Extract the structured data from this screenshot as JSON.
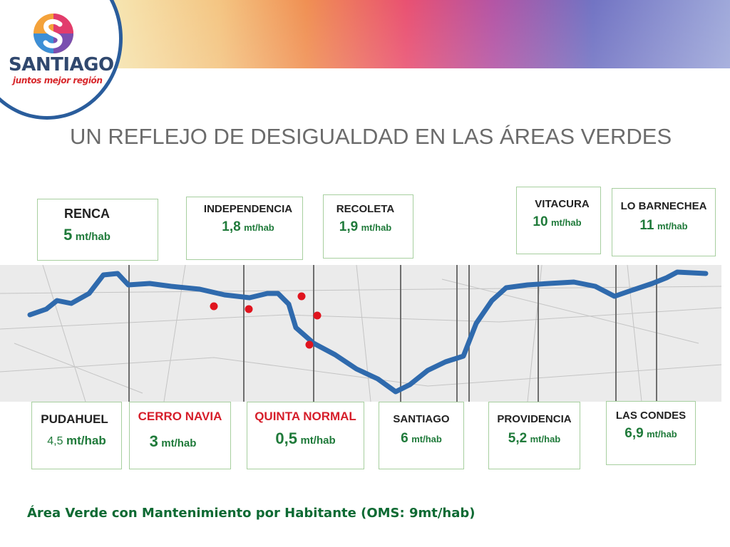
{
  "logo": {
    "name": "SANTIAGO",
    "tagline": "juntos mejor región"
  },
  "title": "UN REFLEJO DE DESIGUALDAD EN LAS ÁREAS VERDES",
  "communes_top": [
    {
      "name": "RENCA",
      "value": "5",
      "unit": "mt/hab"
    },
    {
      "name": "INDEPENDENCIA",
      "value": "1,8",
      "unit": "mt/hab"
    },
    {
      "name": "RECOLETA",
      "value": "1,9",
      "unit": "mt/hab"
    },
    {
      "name": "VITACURA",
      "value": "10",
      "unit": "mt/hab"
    },
    {
      "name": "LO BARNECHEA",
      "value": "11",
      "unit": "mt/hab"
    }
  ],
  "communes_bottom": [
    {
      "name": "PUDAHUEL",
      "value": "4,5",
      "unit": "mt/hab"
    },
    {
      "name": "CERRO NAVIA",
      "value": "3",
      "unit": "mt/hab"
    },
    {
      "name": "QUINTA NORMAL",
      "value": "0,5",
      "unit": "mt/hab"
    },
    {
      "name": "SANTIAGO",
      "value": "6",
      "unit": "mt/hab"
    },
    {
      "name": "PROVIDENCIA",
      "value": "5,2",
      "unit": "mt/hab"
    },
    {
      "name": "LAS CONDES",
      "value": "6,9",
      "unit": "mt/hab"
    }
  ],
  "footer": "Área Verde con Mantenimiento por Habitante (OMS: 9mt/hab)",
  "colors": {
    "river": "#2f6aad",
    "box_border": "#a7cf9f",
    "value_green": "#1f7a3a",
    "highlight_red": "#d61e2a",
    "title_gray": "#6b6b6b"
  }
}
